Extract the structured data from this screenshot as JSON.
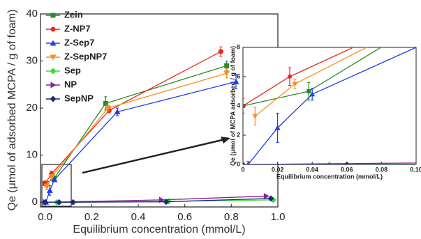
{
  "chart_data": [
    {
      "type": "scatter",
      "x_label": "Equilibrium concentration (mmol/L)",
      "y_label": "Qe (μmol of adsorbed MCPA / g of foam)",
      "xlim": [
        -0.02,
        1.0
      ],
      "ylim": [
        -1,
        40
      ],
      "xticks": [
        {
          "value": 0,
          "label": "0.0"
        },
        0.2,
        0.4,
        0.6,
        0.8,
        {
          "value": 1,
          "label": "1.0"
        }
      ],
      "yticks": [
        0,
        10,
        20,
        30,
        40
      ],
      "series": [
        {
          "name": "Zein",
          "color": "#2a8a2a",
          "marker": "square",
          "x": [
            0,
            0.038,
            0.26,
            0.78
          ],
          "values": [
            4,
            5,
            21,
            29
          ],
          "errors": [
            0.5,
            0.6,
            1.4,
            1
          ]
        },
        {
          "name": "Z-NP7",
          "color": "#e8271f",
          "marker": "circle",
          "x": [
            0,
            0.027,
            0.275,
            0.755
          ],
          "values": [
            4,
            6,
            19.5,
            32
          ],
          "errors": [
            0.5,
            0.6,
            0.5,
            1
          ]
        },
        {
          "name": "Z-Sep7",
          "color": "#1f3ee8",
          "marker": "triangle-up",
          "x": [
            0.003,
            0.02,
            0.04,
            0.31,
            0.82
          ],
          "values": [
            0,
            2.5,
            4.8,
            19.2,
            25.6
          ],
          "errors": [
            0.2,
            1,
            0.4,
            0.8,
            1.5
          ]
        },
        {
          "name": "Z-SepNP7",
          "color": "#f5901e",
          "marker": "triangle-down",
          "x": [
            0.007,
            0.03,
            0.27,
            0.78
          ],
          "values": [
            3.3,
            5.5,
            20,
            27.4
          ],
          "errors": [
            0.6,
            0.3,
            0.6,
            1
          ]
        },
        {
          "name": "Sep",
          "color": "#33dd33",
          "marker": "diamond",
          "x": [
            0.05,
            0.53,
            0.98
          ],
          "values": [
            0,
            0.2,
            0.5
          ]
        },
        {
          "name": "NP",
          "color": "#8b1f9c",
          "marker": "triangle-right",
          "x": [
            0,
            0.5,
            0.95
          ],
          "values": [
            0,
            0.5,
            1.3
          ]
        },
        {
          "name": "SepNP",
          "color": "#1a2a7a",
          "marker": "diamond",
          "x": [
            0,
            0.06,
            0.12,
            0.52,
            0.97
          ],
          "values": [
            0,
            0,
            0,
            0.1,
            0.8
          ]
        }
      ]
    },
    {
      "type": "inset",
      "x_label": "Equilibrium concentration (mmol/L)",
      "y_label": "Qe (μmol of MCPA adsorbed / g of foam)",
      "xlim": [
        0,
        0.1
      ],
      "ylim": [
        0,
        8
      ],
      "xticks": [
        0,
        0.02,
        0.04,
        0.06,
        0.08,
        {
          "value": 0.1,
          "label": "0.10"
        }
      ],
      "yticks": [
        0,
        2,
        4,
        6,
        8
      ]
    }
  ]
}
